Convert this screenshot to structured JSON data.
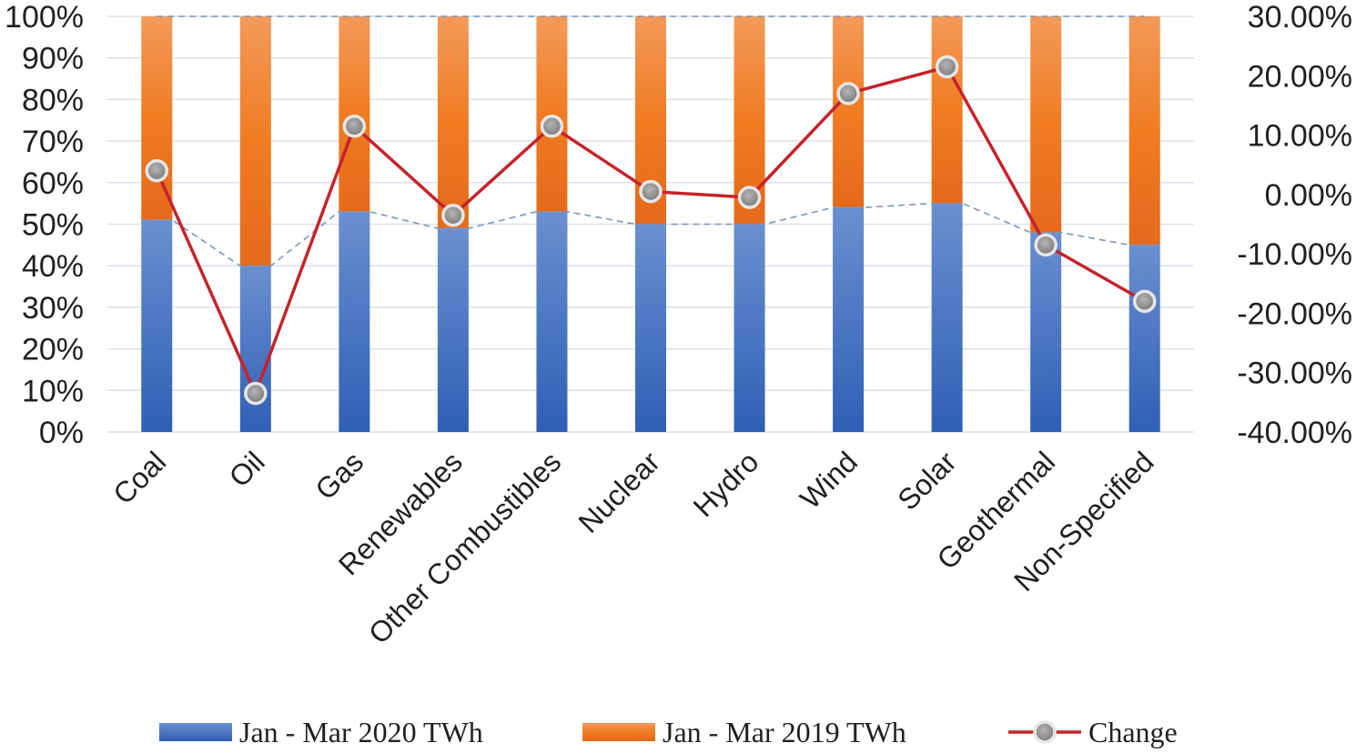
{
  "chart_data": {
    "type": "bar",
    "stacked": "percent",
    "categories": [
      "Coal",
      "Oil",
      "Gas",
      "Renewables",
      "Other Combustibles",
      "Nuclear",
      "Hydro",
      "Wind",
      "Solar",
      "Geothermal",
      "Non-Specified"
    ],
    "series": [
      {
        "name": "Jan - Mar 2020 TWh",
        "kind": "bar",
        "axis": "left",
        "values": [
          51,
          40,
          53,
          49,
          53,
          50,
          50,
          54,
          55,
          48,
          45
        ]
      },
      {
        "name": "Jan - Mar 2019 TWh",
        "kind": "bar",
        "axis": "left",
        "values": [
          49,
          60,
          47,
          51,
          47,
          50,
          50,
          46,
          45,
          52,
          55
        ]
      },
      {
        "name": "Change",
        "kind": "line",
        "axis": "right",
        "values": [
          4.0,
          -33.5,
          11.5,
          -3.5,
          11.5,
          0.5,
          -0.5,
          17.0,
          21.5,
          -8.5,
          -18.0
        ]
      }
    ],
    "divider_line_values": [
      51,
      40,
      53,
      49,
      53,
      50,
      50,
      54,
      55,
      48,
      45
    ],
    "y_left": {
      "min": 0,
      "max": 100,
      "ticks": [
        "0%",
        "10%",
        "20%",
        "30%",
        "40%",
        "50%",
        "60%",
        "70%",
        "80%",
        "90%",
        "100%"
      ]
    },
    "y_right": {
      "min": -40,
      "max": 30,
      "ticks": [
        "-40.00%",
        "-30.00%",
        "-20.00%",
        "-10.00%",
        "0.00%",
        "10.00%",
        "20.00%",
        "30.00%"
      ]
    },
    "legend": {
      "position": "bottom",
      "items": [
        {
          "label": "Jan - Mar 2020 TWh",
          "marker": "bar",
          "color": "#4472c4"
        },
        {
          "label": "Jan - Mar 2019 TWh",
          "marker": "bar",
          "color": "#ed7d31"
        },
        {
          "label": "Change",
          "marker": "line-dot",
          "color": "#c5232b"
        }
      ]
    },
    "colors": {
      "blue": "#4472c4",
      "orange": "#ed7d31",
      "line": "#c5232b",
      "marker": "#8c8c8c",
      "grid": "#d9e1ec",
      "divider": "#7f95b4"
    },
    "grid": true
  }
}
